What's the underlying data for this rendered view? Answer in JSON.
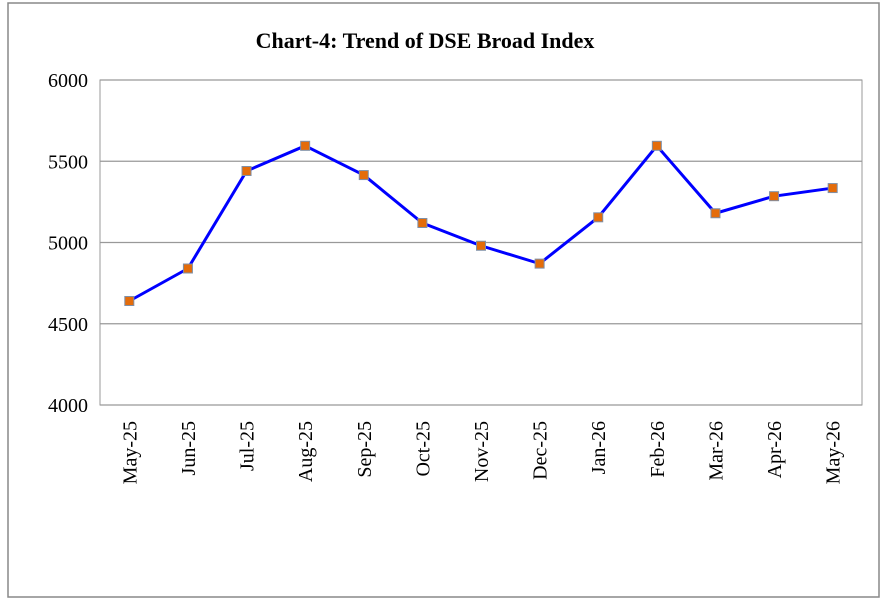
{
  "chart_data": {
    "type": "line",
    "title": "Chart-4: Trend of DSE Broad Index",
    "categories": [
      "May-25",
      "Jun-25",
      "Jul-25",
      "Aug-25",
      "Sep-25",
      "Oct-25",
      "Nov-25",
      "Dec-25",
      "Jan-26",
      "Feb-26",
      "Mar-26",
      "Apr-26",
      "May-26"
    ],
    "series": [
      {
        "name": "DSE Broad Index",
        "color": "#0000ff",
        "marker_color": "#e46c0a",
        "values": [
          4640,
          4840,
          5440,
          5595,
          5415,
          5120,
          4980,
          4870,
          5155,
          5595,
          5180,
          5285,
          5335
        ]
      }
    ],
    "ylim": [
      4000,
      6000
    ],
    "yticks": [
      4000,
      4500,
      5000,
      5500,
      6000
    ],
    "grid": true
  }
}
